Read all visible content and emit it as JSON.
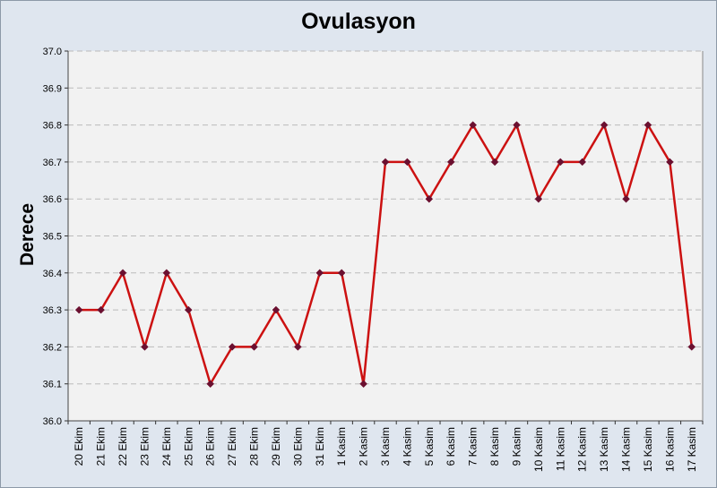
{
  "chart_data": {
    "type": "line",
    "title": "Ovulasyon",
    "xlabel": "",
    "ylabel": "Derece",
    "ylim": [
      36.0,
      37.0
    ],
    "yticks": [
      "36.0",
      "36.1",
      "36.2",
      "36.3",
      "36.4",
      "36.5",
      "36.6",
      "36.7",
      "36.8",
      "36.9",
      "37.0"
    ],
    "grid": true,
    "categories": [
      "20 Ekim",
      "21 Ekim",
      "22 Ekim",
      "23 Ekim",
      "24 Ekim",
      "25 Ekim",
      "26 Ekim",
      "27 Ekim",
      "28 Ekim",
      "29 Ekim",
      "30 Ekim",
      "31 Ekim",
      "1 Kasim",
      "2 Kasim",
      "3 Kasim",
      "4 Kasim",
      "5 Kasim",
      "6 Kasim",
      "7 Kasim",
      "8 Kasim",
      "9 Kasim",
      "10 Kasim",
      "11 Kasim",
      "12 Kasim",
      "13 Kasim",
      "14 Kasim",
      "15 Kasim",
      "16 Kasim",
      "17 Kasim"
    ],
    "series": [
      {
        "values": [
          36.3,
          36.3,
          36.4,
          36.2,
          36.4,
          36.3,
          36.1,
          36.2,
          36.2,
          36.3,
          36.2,
          36.4,
          36.4,
          36.1,
          36.7,
          36.7,
          36.6,
          36.7,
          36.8,
          36.7,
          36.8,
          36.6,
          36.7,
          36.7,
          36.8,
          36.6,
          36.8,
          36.7,
          36.2
        ],
        "line_color": "#cc1111",
        "marker_color": "#6b1030"
      }
    ],
    "colors": {
      "background": "#dfe6ef",
      "plot_area": "#f2f2f2",
      "gridline": "#bbbbbb"
    }
  }
}
